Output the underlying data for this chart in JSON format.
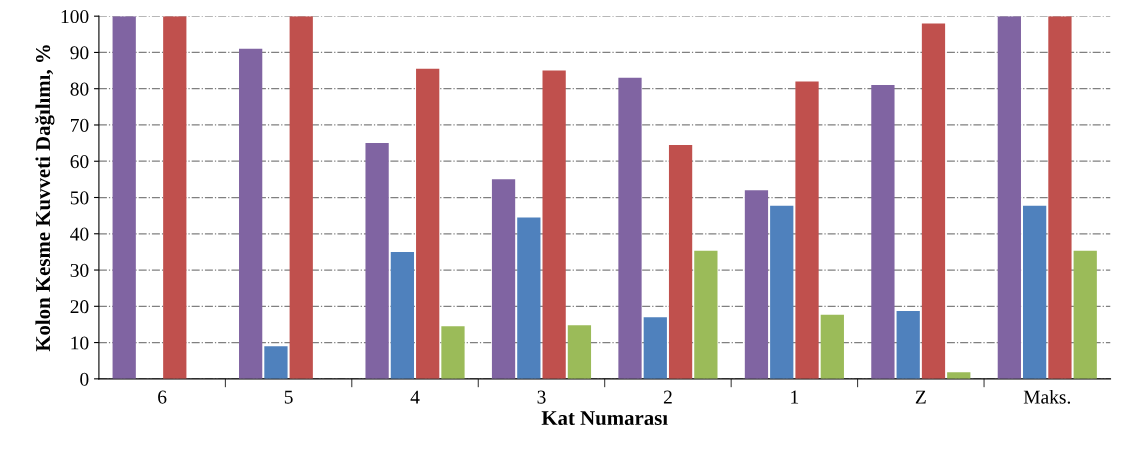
{
  "chart_data": {
    "type": "bar",
    "xlabel": "Kat Numarası",
    "ylabel": "Kolon Kesme Kuvveti Dağılımı, %",
    "categories": [
      "6",
      "5",
      "4",
      "3",
      "2",
      "1",
      "Z",
      "Maks."
    ],
    "series": [
      {
        "color": "#8064a2",
        "values": [
          100,
          91,
          65,
          55,
          83,
          52,
          81,
          100
        ]
      },
      {
        "color": "#4f81bd",
        "values": [
          0,
          9,
          35,
          44.5,
          17,
          47.7,
          18.7,
          47.7
        ]
      },
      {
        "color": "#c0504d",
        "values": [
          100,
          100,
          85.5,
          85,
          64.5,
          82,
          98,
          100
        ]
      },
      {
        "color": "#9bbb59",
        "values": [
          0,
          0,
          14.5,
          14.8,
          35.3,
          17.7,
          1.8,
          35.3
        ]
      }
    ],
    "ylim": [
      0,
      100
    ],
    "yticks": [
      0,
      10,
      20,
      30,
      40,
      50,
      60,
      70,
      80,
      90,
      100
    ],
    "grid": "y",
    "legend": false
  }
}
